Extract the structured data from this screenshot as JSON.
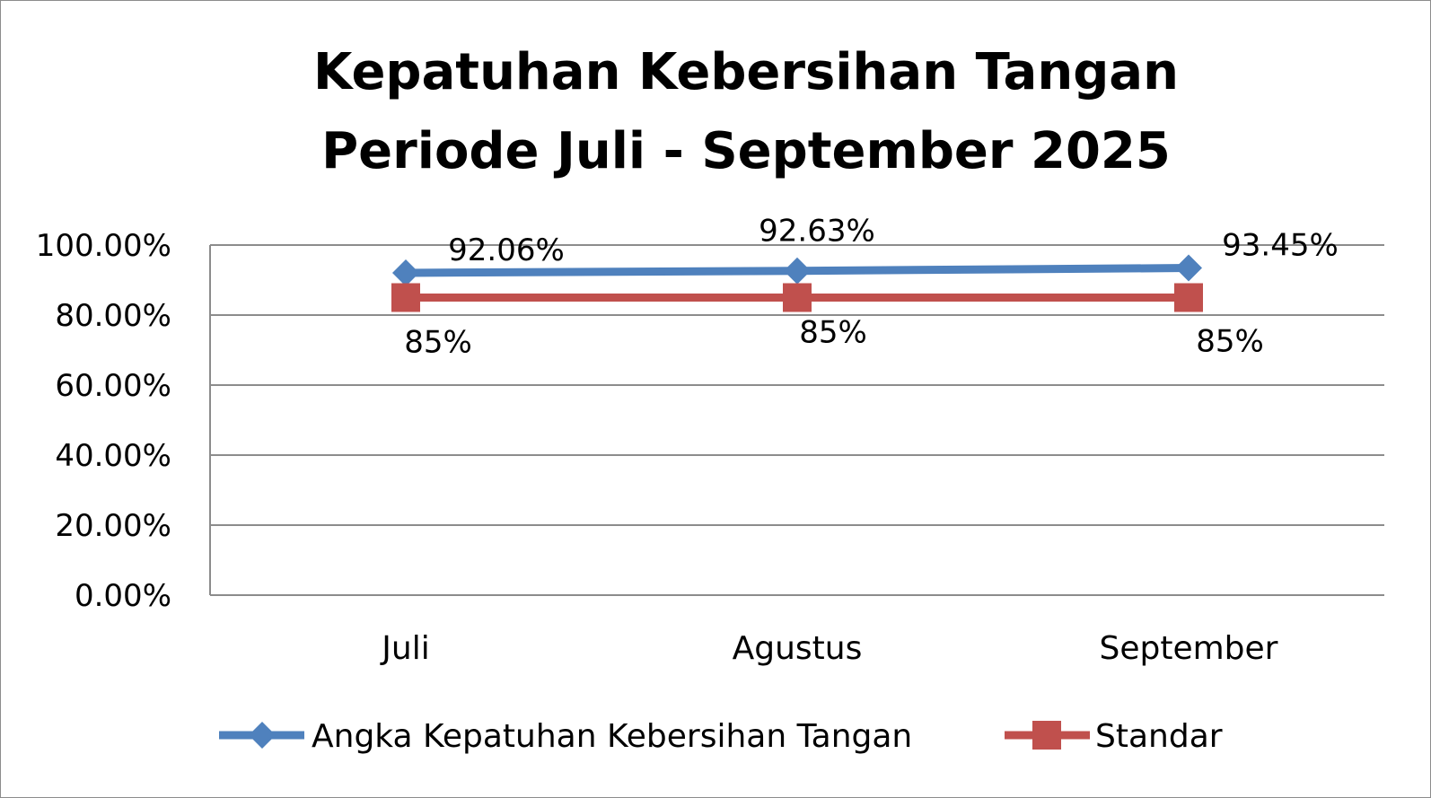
{
  "chart_data": {
    "type": "line",
    "title": [
      "Kepatuhan Kebersihan Tangan",
      "Periode Juli - September 2025"
    ],
    "categories": [
      "Juli",
      "Agustus",
      "September"
    ],
    "ylim": [
      0,
      1
    ],
    "yticks": [
      "0.00%",
      "20.00%",
      "40.00%",
      "60.00%",
      "80.00%",
      "100.00%"
    ],
    "grid": true,
    "legend_position": "bottom",
    "series": [
      {
        "name": "Angka Kepatuhan Kebersihan Tangan",
        "values": [
          0.9206,
          0.9263,
          0.9345
        ],
        "labels": [
          "92.06%",
          "92.63%",
          "93.45%"
        ],
        "color": "#4F81BD",
        "marker": "diamond",
        "label_position": "above"
      },
      {
        "name": "Standar",
        "values": [
          0.85,
          0.85,
          0.85
        ],
        "labels": [
          "85%",
          "85%",
          "85%"
        ],
        "color": "#C0504D",
        "marker": "square",
        "label_position": "below"
      }
    ]
  }
}
